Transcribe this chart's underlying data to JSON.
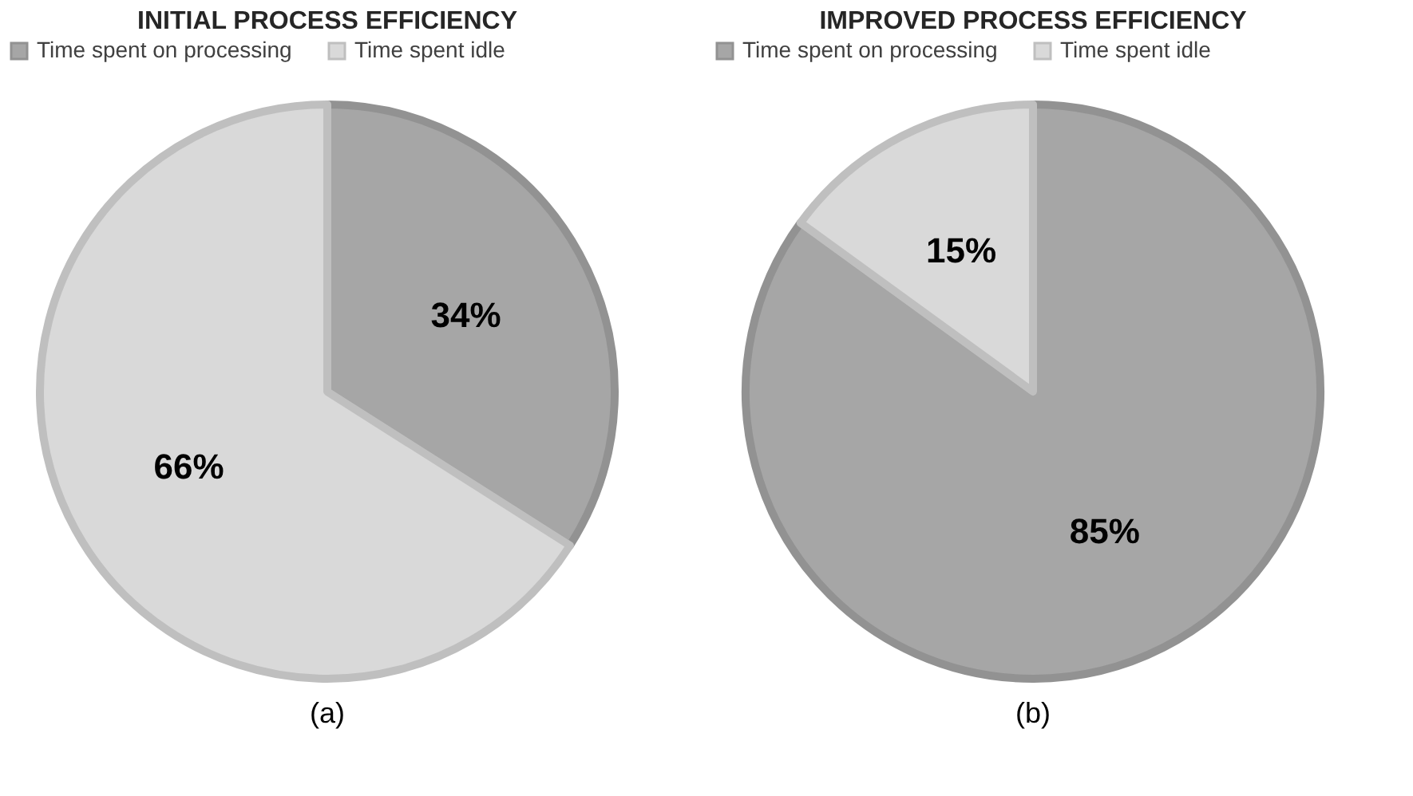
{
  "chart_data": [
    {
      "type": "pie",
      "title": "INITIAL PROCESS EFFICIENCY",
      "categories": [
        "Time spent on processing",
        "Time spent idle"
      ],
      "values": [
        34,
        66
      ],
      "colors": [
        "#a6a6a6",
        "#d9d9d9"
      ],
      "value_labels": [
        "34%",
        "66%"
      ],
      "legend": "top",
      "annotations": [
        "(a)"
      ]
    },
    {
      "type": "pie",
      "title": "IMPROVED PROCESS EFFICIENCY",
      "categories": [
        "Time spent on processing",
        "Time spent idle"
      ],
      "values": [
        85,
        15
      ],
      "colors": [
        "#a6a6a6",
        "#d9d9d9"
      ],
      "value_labels": [
        "85%",
        "15%"
      ],
      "legend": "top",
      "annotations": [
        "(b)"
      ]
    }
  ]
}
